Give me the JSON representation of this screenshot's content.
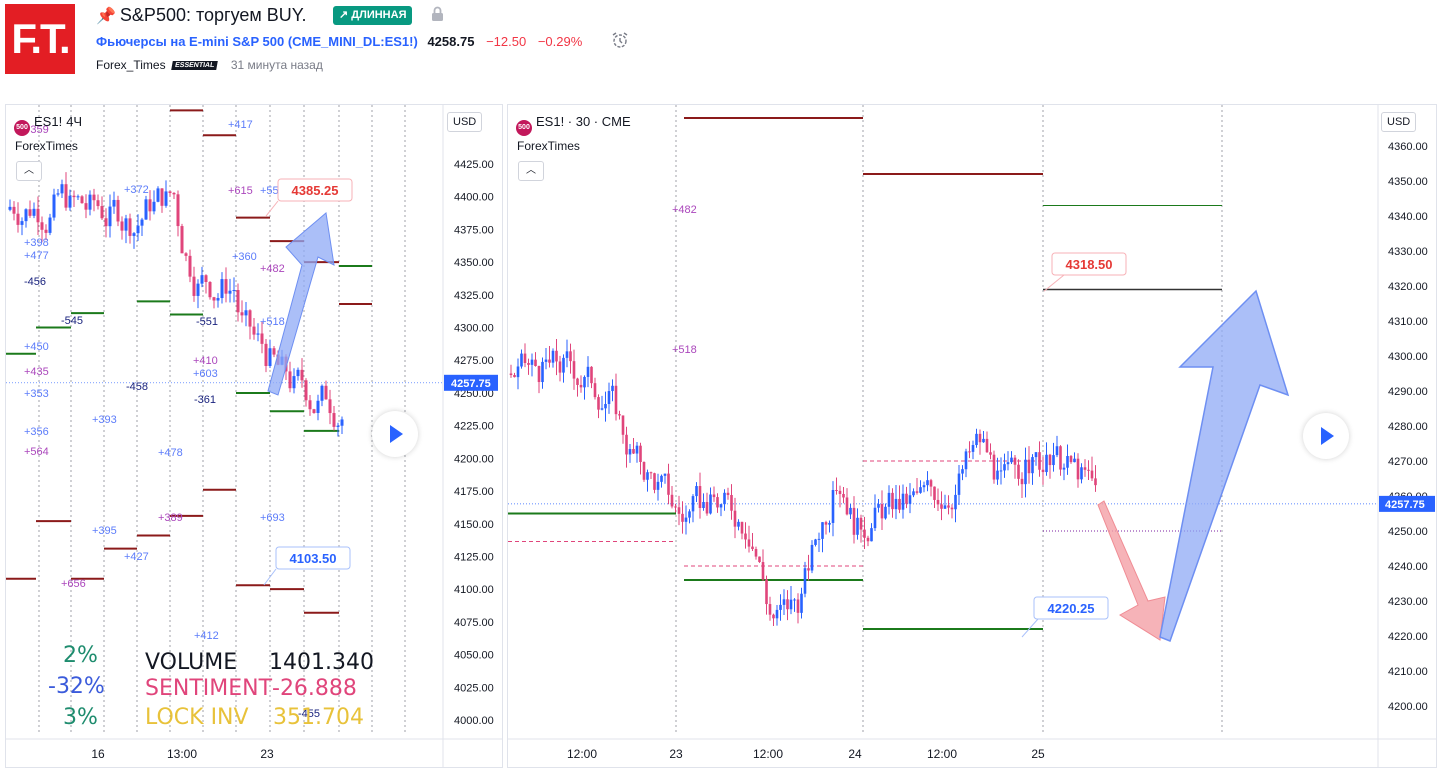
{
  "header": {
    "logo": "F.T.",
    "title": "S&P500: торгуем BUY.",
    "badge": "↗ ДЛИННАЯ",
    "symbol_desc": "Фьючерсы на E-mini S&P 500",
    "symbol_code": "(CME_MINI_DL:ES1!)",
    "price": "4258.75",
    "change": "−12.50",
    "change_pct": "−0.29%",
    "author": "Forex_Times",
    "author_badge": "ESSENTIAL",
    "time_ago": "31 минута назад"
  },
  "left_chart": {
    "symbol": "ES1!",
    "timeframe": "4Ч",
    "subtitle": "ForexTimes",
    "currency": "USD",
    "price_axis": [
      "4425.00",
      "4400.00",
      "4375.00",
      "4350.00",
      "4325.00",
      "4300.00",
      "4275.00",
      "4250.00",
      "4225.00",
      "4200.00",
      "4175.00",
      "4150.00",
      "4125.00",
      "4100.00",
      "4075.00",
      "4050.00",
      "4025.00",
      "4000.00"
    ],
    "last_price": "4257.75",
    "time_axis": [
      "16",
      "13:00",
      "23"
    ],
    "label_upper": "4385.25",
    "label_lower": "4103.50",
    "overlay_numbers": [
      "+359",
      "+398",
      "+477",
      "-456",
      "-545",
      "+450",
      "+435",
      "+353",
      "+356",
      "+564",
      "+372",
      "+417",
      "+615",
      "+55",
      "+360",
      "+482",
      "+518",
      "-551",
      "+410",
      "+603",
      "-458",
      "-361",
      "+393",
      "+478",
      "+389",
      "+395",
      "+427",
      "+656",
      "+693",
      "+412",
      "-455"
    ],
    "stats": {
      "pct_top": "2%",
      "pct_mid": "-32%",
      "pct_bot": "3%",
      "volume_label": "VOLUME",
      "volume_value": "1401.340",
      "sentiment_label": "SENTIMENT",
      "sentiment_value": "-26.888",
      "lock_label": "LOCK INV",
      "lock_value": "351.704"
    }
  },
  "right_chart": {
    "symbol": "ES1! · 30 · CME",
    "subtitle": "ForexTimes",
    "currency": "USD",
    "price_axis": [
      "4360.00",
      "4350.00",
      "4340.00",
      "4330.00",
      "4320.00",
      "4310.00",
      "4300.00",
      "4290.00",
      "4280.00",
      "4270.00",
      "4260.00",
      "4250.00",
      "4240.00",
      "4230.00",
      "4220.00",
      "4210.00",
      "4200.00"
    ],
    "last_price": "4257.75",
    "time_axis": [
      "12:00",
      "23",
      "12:00",
      "24",
      "12:00",
      "25"
    ],
    "label_upper": "4318.50",
    "label_lower": "4220.25",
    "overlay_numbers": [
      "+482",
      "+518"
    ]
  },
  "colors": {
    "up": "#2962ff",
    "down": "#e0457b",
    "level_green": "#1b7a1b",
    "level_red": "#8b1a1a",
    "arrow_blue": "#8fa9f5",
    "arrow_red": "#f4a0a6"
  }
}
